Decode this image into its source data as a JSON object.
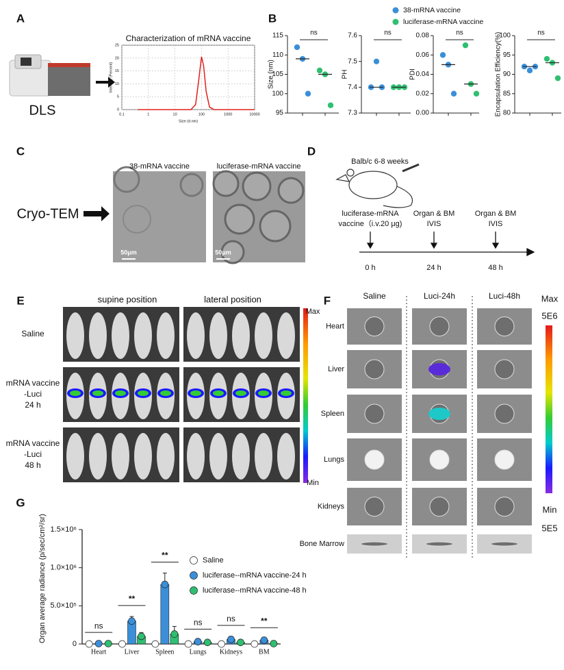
{
  "panel_labels": [
    "A",
    "B",
    "C",
    "D",
    "E",
    "F",
    "G"
  ],
  "dls": {
    "label": "DLS"
  },
  "cryo": {
    "label": "Cryo-TEM",
    "images": [
      "38-mRNA vaccine",
      "luciferase-mRNA vaccine"
    ],
    "scale": [
      "50μm",
      "50μm"
    ]
  },
  "schedule": {
    "mouse": "Balb/c 6-8 weeks",
    "events": [
      [
        "luciferase-mRNA",
        "vaccine（i.v.20 μg)"
      ],
      [
        "Organ & BM",
        "IVIS"
      ],
      [
        "Organ & BM",
        "IVIS"
      ]
    ],
    "times": [
      "0 h",
      "24 h",
      "48 h"
    ]
  },
  "imaging": {
    "columns": [
      "supine position",
      "lateral position"
    ],
    "rows": [
      [
        "Saline"
      ],
      [
        "mRNA vaccine",
        "-Luci",
        "24 h"
      ],
      [
        "mRNA vaccine",
        "-Luci",
        "48 h"
      ]
    ],
    "scale": [
      "Max",
      "Min"
    ]
  },
  "organs": {
    "columns": [
      "Saline",
      "Luci-24h",
      "Luci-48h"
    ],
    "rows": [
      "Heart",
      "Liver",
      "Spleen",
      "Lungs",
      "Kidneys",
      "Bone Marrow"
    ],
    "scale": [
      "Max",
      "5E6",
      "Min",
      "5E5"
    ]
  },
  "chart_data": [
    {
      "type": "line",
      "title": "Characterization of mRNA vaccine",
      "xlabel": "Size (d.nm)",
      "ylabel": "Intensity (Percent)",
      "xlog": true,
      "grid": true,
      "color": "#e0201b",
      "x": [
        0.4,
        40,
        60,
        80,
        100,
        120,
        150,
        200,
        300,
        10000
      ],
      "values": [
        0,
        0,
        2,
        12,
        20.5,
        17,
        7,
        1,
        0,
        0
      ],
      "xlim": [
        0.1,
        10000
      ],
      "xticks": [
        0.1,
        1,
        10,
        100,
        1000,
        10000
      ],
      "ylim": [
        0,
        25
      ],
      "yticks": [
        0,
        5,
        10,
        15,
        20,
        25
      ]
    },
    {
      "type": "scatter",
      "ylabel": "Size (nm)",
      "ylim": [
        95,
        115
      ],
      "yticks": [
        95,
        100,
        105,
        110,
        115
      ],
      "significance": "ns",
      "series": [
        {
          "name": "38-mRNA vaccine",
          "color": "#3b8fd9",
          "values": [
            112,
            109,
            100
          ],
          "median": 109
        },
        {
          "name": "luciferase-mRNA vaccine",
          "color": "#2fbf71",
          "values": [
            106,
            105,
            97
          ],
          "median": 105
        }
      ]
    },
    {
      "type": "scatter",
      "ylabel": "PH",
      "ylim": [
        7.3,
        7.6
      ],
      "yticks": [
        7.3,
        7.4,
        7.5,
        7.6
      ],
      "significance": "ns",
      "series": [
        {
          "color": "#3b8fd9",
          "values": [
            7.4,
            7.5,
            7.4
          ],
          "median": 7.4
        },
        {
          "color": "#2fbf71",
          "values": [
            7.4,
            7.4,
            7.4
          ],
          "median": 7.4
        }
      ]
    },
    {
      "type": "scatter",
      "ylabel": "PDI",
      "ylim": [
        0,
        0.08
      ],
      "yticks": [
        {
          "value": 0,
          "label": "0.00"
        },
        {
          "value": 0.02,
          "label": "0.02"
        },
        {
          "value": 0.04,
          "label": "0.04"
        },
        {
          "value": 0.06,
          "label": "0.06"
        },
        {
          "value": 0.08,
          "label": "0.08"
        }
      ],
      "significance": "ns",
      "series": [
        {
          "color": "#3b8fd9",
          "values": [
            0.06,
            0.05,
            0.02
          ],
          "median": 0.05
        },
        {
          "color": "#2fbf71",
          "values": [
            0.07,
            0.03,
            0.02
          ],
          "median": 0.03
        }
      ]
    },
    {
      "type": "scatter",
      "ylabel": "Encapsulation Efficiency(%)",
      "ylim": [
        80,
        100
      ],
      "yticks": [
        80,
        85,
        90,
        95,
        100
      ],
      "significance": "ns",
      "series": [
        {
          "color": "#3b8fd9",
          "values": [
            92,
            91,
            92
          ],
          "median": 92
        },
        {
          "color": "#2fbf71",
          "values": [
            94,
            93,
            89
          ],
          "median": 93
        }
      ]
    },
    {
      "type": "bar",
      "ylabel": "Organ average radiance  (p/sec/cm²/sr)",
      "ylim": [
        0,
        1500000
      ],
      "yticks": [
        0,
        {
          "value": 500000,
          "label": "5.0×10⁵"
        },
        {
          "value": 1000000,
          "label": "1.0×10⁶"
        },
        {
          "value": 1500000,
          "label": "1.5×10⁶"
        }
      ],
      "categories": [
        "Heart",
        "Liver",
        "Spleen",
        "Lungs",
        "Kidneys",
        "BM"
      ],
      "significance": [
        "ns",
        "**",
        "**",
        "ns",
        "ns",
        "**"
      ],
      "series": [
        {
          "name": "Saline",
          "color": "#ffffff",
          "values": [
            0,
            0,
            0,
            0,
            0,
            0
          ]
        },
        {
          "name": "luciferase--mRNA vaccine-24 h",
          "color": "#3b8fd9",
          "values": [
            5000,
            300000,
            780000,
            30000,
            60000,
            50000
          ],
          "errors": [
            3000,
            60000,
            150000,
            20000,
            40000,
            20000
          ]
        },
        {
          "name": "luciferase--mRNA vaccine-48 h",
          "color": "#2fbf71",
          "values": [
            5000,
            100000,
            130000,
            20000,
            20000,
            5000
          ],
          "errors": [
            3000,
            50000,
            100000,
            10000,
            10000,
            3000
          ]
        }
      ]
    }
  ]
}
